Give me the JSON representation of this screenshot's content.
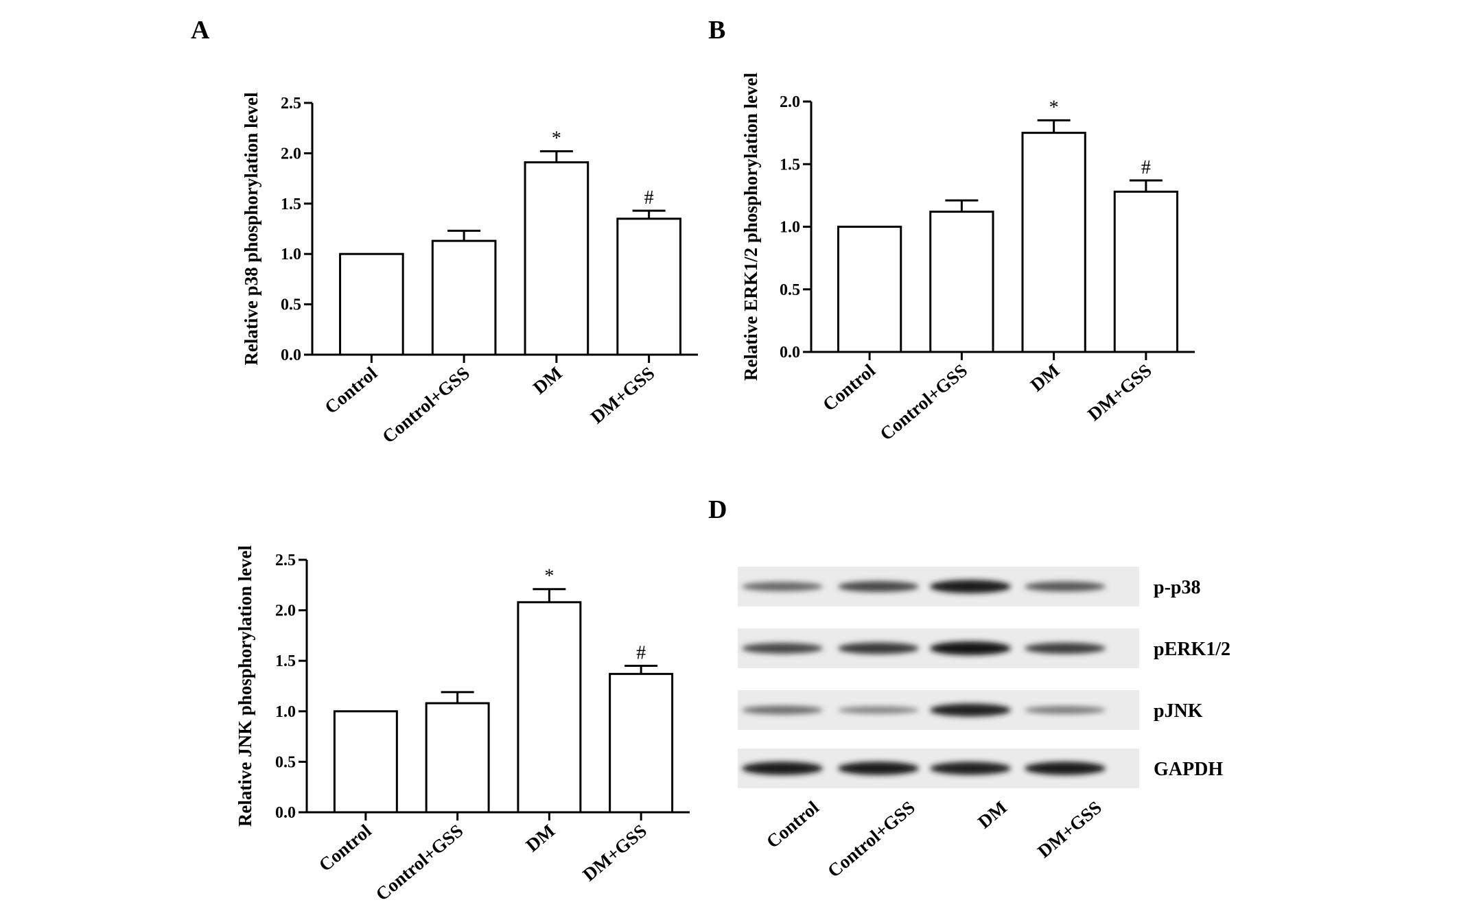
{
  "chart_data": [
    {
      "panel": "A",
      "type": "bar",
      "categories": [
        "Control",
        "Control+GSS",
        "DM",
        "DM+GSS"
      ],
      "values": [
        1.0,
        1.13,
        1.91,
        1.35
      ],
      "errors": [
        0,
        0.1,
        0.11,
        0.08
      ],
      "significance": [
        "",
        "",
        "*",
        "#"
      ],
      "ylabel": "Relative p38 phosphorylation level",
      "ylim": [
        0,
        2.5
      ],
      "yticks": [
        "0.0",
        "0.5",
        "1.0",
        "1.5",
        "2.0",
        "2.5"
      ]
    },
    {
      "panel": "B",
      "type": "bar",
      "categories": [
        "Control",
        "Control+GSS",
        "DM",
        "DM+GSS"
      ],
      "values": [
        1.0,
        1.12,
        1.75,
        1.28
      ],
      "errors": [
        0,
        0.09,
        0.1,
        0.09
      ],
      "significance": [
        "",
        "",
        "*",
        "#"
      ],
      "ylabel": "Relative ERK1/2 phosphorylation level",
      "ylim": [
        0,
        2.0
      ],
      "yticks": [
        "0.0",
        "0.5",
        "1.0",
        "1.5",
        "2.0"
      ]
    },
    {
      "panel": "",
      "type": "bar",
      "categories": [
        "Control",
        "Control+GSS",
        "DM",
        "DM+GSS"
      ],
      "values": [
        1.0,
        1.08,
        2.08,
        1.37
      ],
      "errors": [
        0,
        0.11,
        0.13,
        0.08
      ],
      "significance": [
        "",
        "",
        "*",
        "#"
      ],
      "ylabel": "Relative JNK phosphorylation level",
      "ylim": [
        0,
        2.5
      ],
      "yticks": [
        "0.0",
        "0.5",
        "1.0",
        "1.5",
        "2.0",
        "2.5"
      ]
    }
  ],
  "blot": {
    "panel": "D",
    "lanes": [
      "Control",
      "Control+GSS",
      "DM",
      "DM+GSS"
    ],
    "rows": [
      {
        "label": "p-p38",
        "intensity": [
          0.45,
          0.65,
          0.95,
          0.55
        ]
      },
      {
        "label": "pERK1/2",
        "intensity": [
          0.65,
          0.75,
          1.0,
          0.7
        ]
      },
      {
        "label": "pJNK",
        "intensity": [
          0.4,
          0.25,
          0.9,
          0.3
        ]
      },
      {
        "label": "GAPDH",
        "intensity": [
          0.95,
          0.95,
          0.92,
          0.95
        ]
      }
    ]
  }
}
